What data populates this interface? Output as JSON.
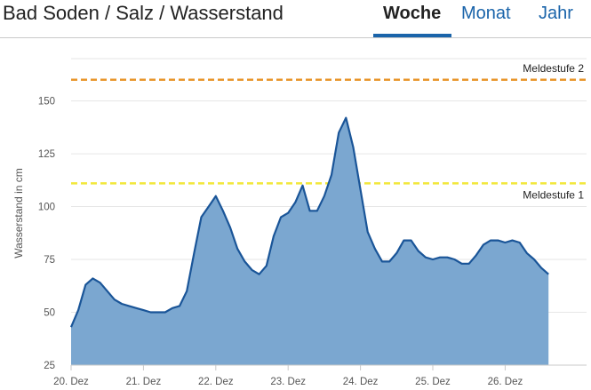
{
  "header": {
    "title": "Bad Soden / Salz / Wasserstand",
    "tabs": [
      {
        "label": "Woche",
        "active": true
      },
      {
        "label": "Monat",
        "active": false
      },
      {
        "label": "Jahr",
        "active": false
      }
    ]
  },
  "colors": {
    "accent": "#1a64aa",
    "area_fill": "#7ba7d0",
    "line": "#1a5598",
    "meldestufe_1": "#f2e83a",
    "meldestufe_2": "#e8962c"
  },
  "chart_data": {
    "type": "area",
    "title": "",
    "xlabel": "",
    "ylabel": "Wasserstand in cm",
    "xticks": [
      "20. Dez",
      "21. Dez",
      "22. Dez",
      "23. Dez",
      "24. Dez",
      "25. Dez",
      "26. Dez"
    ],
    "yticks": [
      25,
      50,
      75,
      100,
      125,
      150
    ],
    "xlim": [
      0,
      7
    ],
    "ylim": [
      25,
      170
    ],
    "grid": true,
    "thresholds": [
      {
        "label": "Meldestufe 2",
        "value": 160
      },
      {
        "label": "Meldestufe 1",
        "value": 111
      }
    ],
    "series": [
      {
        "x": [
          0,
          0.1,
          0.2,
          0.3,
          0.4,
          0.5,
          0.6,
          0.7,
          0.8,
          0.9,
          1.0,
          1.1,
          1.2,
          1.3,
          1.4,
          1.5,
          1.6,
          1.7,
          1.8,
          1.9,
          2.0,
          2.1,
          2.2,
          2.3,
          2.4,
          2.5,
          2.6,
          2.7,
          2.8,
          2.9,
          3.0,
          3.1,
          3.2,
          3.3,
          3.4,
          3.5,
          3.6,
          3.7,
          3.8,
          3.9,
          4.0,
          4.1,
          4.2,
          4.3,
          4.4,
          4.5,
          4.6,
          4.7,
          4.8,
          4.9,
          5.0,
          5.1,
          5.2,
          5.3,
          5.4,
          5.5,
          5.6,
          5.7,
          5.8,
          5.9,
          6.0,
          6.1,
          6.2,
          6.3,
          6.4,
          6.5,
          6.6
        ],
        "values": [
          43,
          51,
          63,
          66,
          64,
          60,
          56,
          54,
          53,
          52,
          51,
          50,
          50,
          50,
          52,
          53,
          60,
          78,
          95,
          100,
          105,
          98,
          90,
          80,
          74,
          70,
          68,
          72,
          86,
          95,
          97,
          102,
          110,
          98,
          98,
          105,
          115,
          135,
          142,
          128,
          108,
          88,
          80,
          74,
          74,
          78,
          84,
          84,
          79,
          76,
          75,
          76,
          76,
          75,
          73,
          73,
          77,
          82,
          84,
          84,
          83,
          84,
          83,
          78,
          75,
          71,
          68
        ]
      }
    ]
  }
}
